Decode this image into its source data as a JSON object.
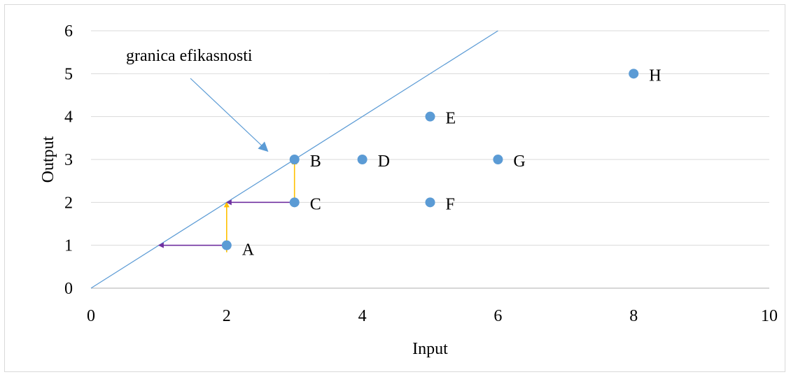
{
  "chart_data": {
    "type": "scatter",
    "title": "",
    "xlabel": "Input",
    "ylabel": "Output",
    "xlim": [
      0,
      10
    ],
    "ylim": [
      0,
      6
    ],
    "xticks": [
      0,
      2,
      4,
      6,
      8,
      10
    ],
    "yticks": [
      0,
      1,
      2,
      3,
      4,
      5,
      6
    ],
    "grid": "horizontal",
    "legend": "none",
    "points": [
      {
        "label": "A",
        "x": 2,
        "y": 1
      },
      {
        "label": "B",
        "x": 3,
        "y": 3
      },
      {
        "label": "C",
        "x": 3,
        "y": 2
      },
      {
        "label": "D",
        "x": 4,
        "y": 3
      },
      {
        "label": "E",
        "x": 5,
        "y": 4
      },
      {
        "label": "F",
        "x": 5,
        "y": 2
      },
      {
        "label": "G",
        "x": 6,
        "y": 3
      },
      {
        "label": "H",
        "x": 8,
        "y": 5
      }
    ],
    "frontier_line": {
      "from": [
        0,
        0
      ],
      "to": [
        6,
        6
      ]
    },
    "annotation": {
      "text": "granica efikasnosti",
      "points_to": [
        2.6,
        3.2
      ]
    },
    "arrows": [
      {
        "from": [
          2,
          1
        ],
        "to": [
          1,
          1
        ],
        "color": "#7030a0"
      },
      {
        "from": [
          2,
          1
        ],
        "to": [
          2,
          2
        ],
        "color": "#ffc000"
      },
      {
        "from": [
          3,
          2
        ],
        "to": [
          2,
          2
        ],
        "color": "#7030a0"
      },
      {
        "from": [
          3,
          2
        ],
        "to": [
          3,
          3
        ],
        "color": "#ffc000"
      }
    ],
    "colors": {
      "points": "#5b9bd5",
      "frontier": "#5b9bd5",
      "grid": "#d9d9d9",
      "axis": "#bfbfbf"
    }
  }
}
